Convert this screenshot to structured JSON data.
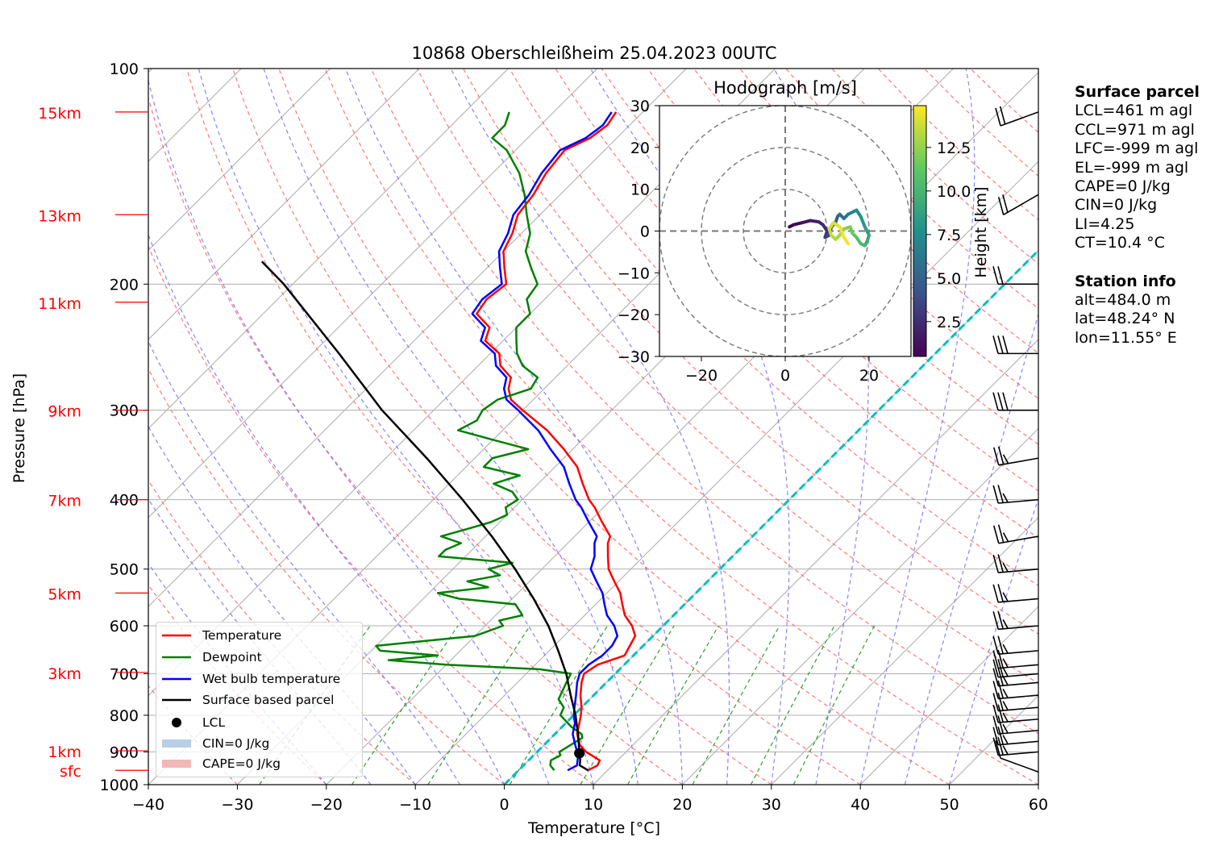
{
  "chart_data": {
    "type": "skew-t",
    "title": "10868 Oberschleißheim 25.04.2023 00UTC",
    "xlabel": "Temperature [°C]",
    "ylabel": "Pressure [hPa]",
    "xlim": [
      -40,
      60
    ],
    "ylim": [
      1000,
      100
    ],
    "x_ticks": [
      "−40",
      "−30",
      "−20",
      "−10",
      "0",
      "10",
      "20",
      "30",
      "40",
      "50",
      "60"
    ],
    "y_ticks": [
      "100",
      "200",
      "300",
      "400",
      "500",
      "600",
      "700",
      "800",
      "900",
      "1000"
    ],
    "height_markers": [
      {
        "label": "15km",
        "p": 115
      },
      {
        "label": "13km",
        "p": 160
      },
      {
        "label": "11km",
        "p": 212
      },
      {
        "label": "9km",
        "p": 300
      },
      {
        "label": "7km",
        "p": 400
      },
      {
        "label": "5km",
        "p": 540
      },
      {
        "label": "3km",
        "p": 697
      },
      {
        "label": "1km",
        "p": 897
      },
      {
        "label": "sfc",
        "p": 955
      }
    ],
    "series": [
      {
        "name": "Temperature",
        "color": "#ff0000",
        "p": [
          955,
          940,
          925,
          910,
          900,
          880,
          850,
          820,
          800,
          780,
          750,
          720,
          700,
          680,
          660,
          640,
          620,
          600,
          580,
          560,
          540,
          520,
          500,
          480,
          460,
          450,
          430,
          410,
          400,
          380,
          360,
          340,
          320,
          300,
          290,
          280,
          270,
          260,
          250,
          240,
          230,
          220,
          210,
          200,
          190,
          180,
          170,
          160,
          150,
          140,
          130,
          125,
          120,
          115
        ],
        "t": [
          7.8,
          8.3,
          8.0,
          6.5,
          5.5,
          4.0,
          2.5,
          1.5,
          0.8,
          0.0,
          -1.5,
          -2.8,
          -3.5,
          -3.0,
          -1.0,
          -1.5,
          -2.0,
          -3.5,
          -5.5,
          -7.0,
          -8.5,
          -10.5,
          -12.5,
          -14.0,
          -15.5,
          -16.0,
          -18.5,
          -21.0,
          -22.5,
          -25.0,
          -27.5,
          -31.0,
          -35.0,
          -40.0,
          -42.5,
          -44.0,
          -45.0,
          -47.5,
          -49.0,
          -52.0,
          -53.0,
          -56.0,
          -56.5,
          -56.0,
          -58.0,
          -60.0,
          -61.0,
          -62.5,
          -63.0,
          -64.0,
          -64.5,
          -63.0,
          -62.5,
          -63.0
        ]
      },
      {
        "name": "Dewpoint",
        "color": "#008000",
        "p": [
          955,
          940,
          925,
          910,
          900,
          880,
          860,
          850,
          830,
          800,
          780,
          760,
          740,
          720,
          700,
          690,
          680,
          670,
          660,
          650,
          640,
          630,
          620,
          600,
          590,
          580,
          570,
          560,
          550,
          540,
          530,
          520,
          510,
          500,
          490,
          480,
          470,
          460,
          450,
          440,
          430,
          420,
          410,
          400,
          390,
          380,
          370,
          360,
          350,
          340,
          330,
          320,
          310,
          300,
          290,
          280,
          270,
          260,
          250,
          240,
          230,
          220,
          210,
          200,
          190,
          180,
          170,
          160,
          150,
          140,
          130,
          125,
          120,
          115
        ],
        "t": [
          4.0,
          3.0,
          2.5,
          3.0,
          2.5,
          3.0,
          3.5,
          3.0,
          1.0,
          -1.5,
          -2.0,
          -3.5,
          -4.0,
          -4.5,
          -5.0,
          -9.0,
          -20.0,
          -27.0,
          -22.0,
          -29.0,
          -30.0,
          -25.0,
          -20.0,
          -18.0,
          -19.0,
          -17.0,
          -18.0,
          -19.0,
          -26.0,
          -29.0,
          -24.0,
          -27.0,
          -24.0,
          -26.0,
          -24.0,
          -33.0,
          -33.0,
          -32.0,
          -35.0,
          -33.0,
          -31.0,
          -30.0,
          -31.0,
          -30.5,
          -32.0,
          -35.0,
          -33.0,
          -38.0,
          -38.0,
          -35.0,
          -40.0,
          -45.0,
          -44.0,
          -44.5,
          -44.0,
          -41.5,
          -42.0,
          -45.0,
          -47.0,
          -48.5,
          -50.0,
          -50.0,
          -52.0,
          -52.5,
          -55.0,
          -57.5,
          -59.0,
          -61.5,
          -64.0,
          -67.0,
          -71.0,
          -74.0,
          -74.0,
          -75.0
        ]
      },
      {
        "name": "Wet bulb temperature",
        "color": "#0000ff",
        "p": [
          955,
          940,
          925,
          910,
          900,
          880,
          850,
          820,
          800,
          780,
          750,
          720,
          700,
          680,
          660,
          640,
          620,
          600,
          580,
          560,
          540,
          520,
          500,
          480,
          460,
          450,
          430,
          410,
          400,
          380,
          360,
          340,
          320,
          300,
          290,
          280,
          270,
          260,
          250,
          240,
          230,
          220,
          210,
          200,
          190,
          180,
          170,
          160,
          150,
          140,
          130,
          125,
          120,
          115
        ],
        "t": [
          5.5,
          6.0,
          5.5,
          5.0,
          4.5,
          3.5,
          2.0,
          1.0,
          0.0,
          -0.8,
          -2.0,
          -3.3,
          -4.0,
          -4.0,
          -3.5,
          -3.5,
          -4.0,
          -5.5,
          -7.5,
          -9.0,
          -10.5,
          -12.5,
          -14.5,
          -15.5,
          -17.0,
          -17.5,
          -20.0,
          -22.5,
          -24.0,
          -26.5,
          -29.0,
          -32.5,
          -36.0,
          -40.5,
          -43.0,
          -44.5,
          -45.5,
          -48.0,
          -49.5,
          -52.5,
          -53.5,
          -56.5,
          -57.0,
          -56.5,
          -58.5,
          -60.5,
          -61.5,
          -63.0,
          -63.5,
          -64.5,
          -65.0,
          -63.5,
          -63.0,
          -63.5
        ]
      },
      {
        "name": "Surface based parcel",
        "color": "#000000",
        "p": [
          955,
          940,
          925,
          904,
          880,
          850,
          800,
          750,
          700,
          650,
          600,
          550,
          500,
          450,
          400,
          350,
          300,
          250,
          200,
          186
        ],
        "t": [
          7.8,
          6.3,
          5.8,
          4.9,
          3.9,
          2.6,
          0.2,
          -2.6,
          -5.5,
          -9.0,
          -12.9,
          -17.6,
          -23.0,
          -29.3,
          -36.7,
          -45.4,
          -55.8,
          -67.0,
          -81.0,
          -86.0
        ]
      }
    ],
    "lcl": {
      "label": "LCL",
      "p": 904,
      "t": 4.9
    },
    "legend": {
      "placement": "lower-left",
      "items": [
        "Temperature",
        "Dewpoint",
        "Wet bulb temperature",
        "Surface based parcel",
        "LCL",
        "CIN=0 J/kg",
        "CAPE=0 J/kg"
      ],
      "cin_color": "#b8cfe8",
      "cape_color": "#f2b8b8"
    },
    "background_lines": {
      "isotherm_color": "#aaaaaa",
      "dry_adiabat_color": "#ff6060",
      "moist_adiabat_color": "#7070ff",
      "mixing_ratio_color": "#2e9e2e",
      "zero_isotherm_color": "#00c0c0"
    },
    "wind_barbs": [
      {
        "p": 960,
        "speed_kt": 10,
        "dir_deg": 250
      },
      {
        "p": 900,
        "speed_kt": 25,
        "dir_deg": 275
      },
      {
        "p": 870,
        "speed_kt": 25,
        "dir_deg": 275
      },
      {
        "p": 840,
        "speed_kt": 25,
        "dir_deg": 275
      },
      {
        "p": 810,
        "speed_kt": 25,
        "dir_deg": 275
      },
      {
        "p": 780,
        "speed_kt": 25,
        "dir_deg": 275
      },
      {
        "p": 750,
        "speed_kt": 25,
        "dir_deg": 275
      },
      {
        "p": 720,
        "speed_kt": 25,
        "dir_deg": 275
      },
      {
        "p": 700,
        "speed_kt": 25,
        "dir_deg": 275
      },
      {
        "p": 680,
        "speed_kt": 25,
        "dir_deg": 275
      },
      {
        "p": 650,
        "speed_kt": 25,
        "dir_deg": 275
      },
      {
        "p": 600,
        "speed_kt": 25,
        "dir_deg": 275
      },
      {
        "p": 550,
        "speed_kt": 25,
        "dir_deg": 275
      },
      {
        "p": 500,
        "speed_kt": 25,
        "dir_deg": 275
      },
      {
        "p": 450,
        "speed_kt": 25,
        "dir_deg": 280
      },
      {
        "p": 400,
        "speed_kt": 25,
        "dir_deg": 275
      },
      {
        "p": 350,
        "speed_kt": 25,
        "dir_deg": 280
      },
      {
        "p": 300,
        "speed_kt": 30,
        "dir_deg": 270
      },
      {
        "p": 250,
        "speed_kt": 30,
        "dir_deg": 270
      },
      {
        "p": 200,
        "speed_kt": 20,
        "dir_deg": 270
      },
      {
        "p": 150,
        "speed_kt": 20,
        "dir_deg": 300
      },
      {
        "p": 115,
        "speed_kt": 20,
        "dir_deg": 290
      }
    ],
    "hodograph": {
      "title": "Hodograph [m/s]",
      "xlim": [
        -30,
        30
      ],
      "ylim": [
        -30,
        30
      ],
      "ticks": [
        "−30",
        "−20",
        "−10",
        "0",
        "10",
        "20",
        "30"
      ],
      "x_ticks": [
        "−20",
        "0",
        "20"
      ],
      "rings": [
        10,
        20,
        30
      ],
      "colorbar": {
        "label": "Height [km]",
        "ticks": [
          "2.5",
          "5.0",
          "7.5",
          "10.0",
          "12.5"
        ],
        "range": [
          0.5,
          14.9
        ]
      },
      "u": [
        1,
        2,
        4,
        6,
        8,
        9,
        10,
        9.5,
        10.5,
        11,
        12,
        12.5,
        13,
        14,
        15,
        16,
        17,
        18,
        19,
        20,
        19.5,
        19,
        18,
        17,
        16,
        15.5,
        14,
        13,
        12,
        11,
        10.5,
        11.5,
        13,
        14,
        15
      ],
      "v": [
        1,
        1.5,
        2,
        2.5,
        2.2,
        1.5,
        0,
        -1.5,
        -1,
        1,
        2,
        3.5,
        4,
        3,
        4,
        4.5,
        5,
        3.5,
        1,
        -1,
        -2.5,
        -3.5,
        -3,
        -1.5,
        -0.5,
        1,
        0.5,
        -1,
        -2,
        -1,
        0.5,
        2,
        1,
        -1.5,
        -3
      ],
      "h": [
        0.5,
        0.9,
        1.3,
        1.7,
        2.1,
        2.5,
        2.9,
        3.3,
        3.7,
        4.1,
        4.6,
        5.0,
        5.5,
        6.0,
        6.5,
        7.0,
        7.5,
        8.0,
        8.5,
        9.0,
        9.5,
        10.0,
        10.5,
        11.0,
        11.5,
        12.0,
        12.4,
        12.8,
        13.2,
        13.6,
        14.0,
        14.3,
        14.5,
        14.7,
        14.9
      ]
    }
  },
  "info": {
    "surface_title": "Surface parcel",
    "surface_lines": [
      "LCL=461 m agl",
      "CCL=971 m agl",
      "LFC=-999 m agl",
      "EL=-999 m agl",
      "CAPE=0 J/kg",
      "CIN=0 J/kg",
      "LI=4.25",
      "CT=10.4 °C"
    ],
    "station_title": "Station info",
    "station_lines": [
      "alt=484.0 m",
      "lat=48.24° N",
      "lon=11.55° E"
    ]
  }
}
